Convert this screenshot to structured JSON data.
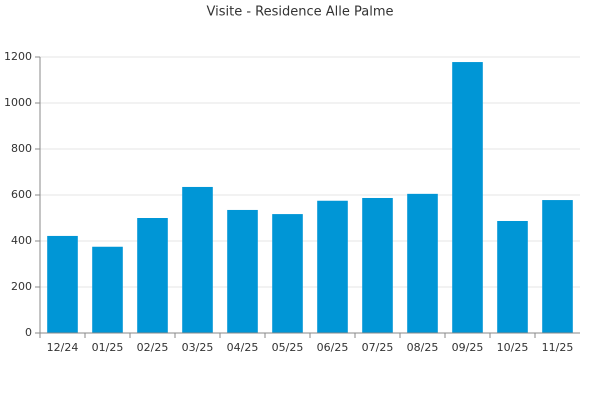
{
  "chart_data": {
    "type": "bar",
    "title": "Visite - Residence Alle Palme",
    "categories": [
      "12/24",
      "01/25",
      "02/25",
      "03/25",
      "04/25",
      "05/25",
      "06/25",
      "07/25",
      "08/25",
      "09/25",
      "10/25",
      "11/25"
    ],
    "values": [
      422,
      375,
      500,
      635,
      535,
      517,
      575,
      587,
      605,
      1178,
      487,
      578
    ],
    "color": "#0096d6",
    "ylim": [
      0,
      1200
    ],
    "yticks": [
      0,
      200,
      400,
      600,
      800,
      1000,
      1200
    ],
    "grid": true
  }
}
